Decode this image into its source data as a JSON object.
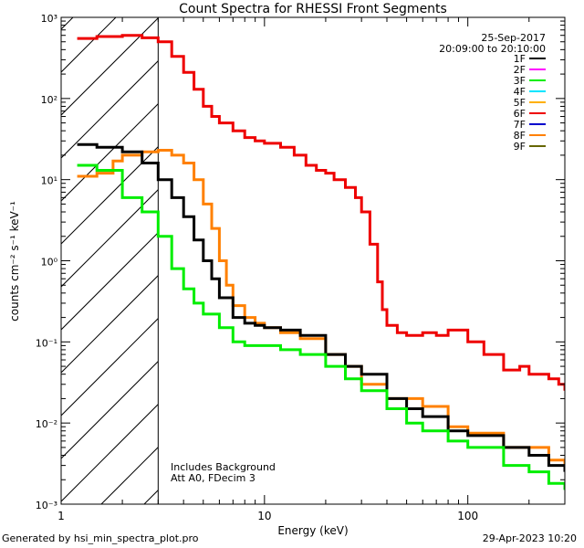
{
  "chart_data": {
    "type": "line",
    "title": "Count Spectra for RHESSI Front Segments",
    "xlabel": "Energy (keV)",
    "ylabel": "counts cm⁻² s⁻¹ keV⁻¹",
    "xscale": "log",
    "yscale": "log",
    "xlim": [
      1,
      300
    ],
    "ylim": [
      0.001,
      1000
    ],
    "x_ticks": [
      {
        "value": 1,
        "label": "1"
      },
      {
        "value": 10,
        "label": "10"
      },
      {
        "value": 100,
        "label": "100"
      }
    ],
    "y_ticks": [
      {
        "value": 0.001,
        "label": "10⁻³"
      },
      {
        "value": 0.01,
        "label": "10⁻²"
      },
      {
        "value": 0.1,
        "label": "10⁻¹"
      },
      {
        "value": 1,
        "label": "10⁰"
      },
      {
        "value": 10,
        "label": "10¹"
      },
      {
        "value": 100,
        "label": "10²"
      },
      {
        "value": 1000,
        "label": "10³"
      }
    ],
    "date": "25-Sep-2017",
    "time_range": "20:09:00 to 20:10:00",
    "hatched_region_xmax": 3,
    "annotation_lines": [
      "Includes Background",
      "Att A0, FDecim 3"
    ],
    "legend": [
      {
        "label": "1F",
        "color": "#000000"
      },
      {
        "label": "2F",
        "color": "#ff00ff"
      },
      {
        "label": "3F",
        "color": "#00ee00"
      },
      {
        "label": "4F",
        "color": "#00e5ff"
      },
      {
        "label": "5F",
        "color": "#ffb000"
      },
      {
        "label": "6F",
        "color": "#ee0000"
      },
      {
        "label": "7F",
        "color": "#0000cc"
      },
      {
        "label": "8F",
        "color": "#ff8000"
      },
      {
        "label": "9F",
        "color": "#666600"
      }
    ],
    "series": [
      {
        "name": "6F",
        "color": "#ee0000",
        "x": [
          1.2,
          1.5,
          2.0,
          2.5,
          3.0,
          3.5,
          4.0,
          4.5,
          5.0,
          5.5,
          6.0,
          7.0,
          8.0,
          9.0,
          10,
          12,
          14,
          16,
          18,
          20,
          22,
          25,
          28,
          30,
          33,
          36,
          38,
          40,
          45,
          50,
          60,
          70,
          80,
          100,
          120,
          150,
          180,
          200,
          250,
          280,
          300
        ],
        "y": [
          550,
          580,
          600,
          560,
          500,
          330,
          210,
          130,
          80,
          60,
          50,
          40,
          33,
          30,
          28,
          25,
          20,
          15,
          13,
          12,
          10,
          8,
          6,
          4,
          1.6,
          0.55,
          0.25,
          0.16,
          0.13,
          0.12,
          0.13,
          0.12,
          0.14,
          0.1,
          0.07,
          0.045,
          0.05,
          0.04,
          0.035,
          0.03,
          0.025
        ]
      },
      {
        "name": "8F",
        "color": "#ff8000",
        "x": [
          1.2,
          1.5,
          1.8,
          2.0,
          2.5,
          3.0,
          3.5,
          4.0,
          4.5,
          5.0,
          5.5,
          6.0,
          6.5,
          7.0,
          8.0,
          9.0,
          10,
          12,
          15,
          20,
          25,
          30,
          40,
          50,
          60,
          80,
          100,
          150,
          200,
          250,
          300
        ],
        "y": [
          11,
          12,
          17,
          20,
          22,
          23,
          20,
          16,
          10,
          5,
          2.5,
          1.0,
          0.5,
          0.28,
          0.2,
          0.17,
          0.15,
          0.13,
          0.11,
          0.07,
          0.05,
          0.03,
          0.02,
          0.02,
          0.016,
          0.009,
          0.0075,
          0.005,
          0.005,
          0.0035,
          0.003
        ]
      },
      {
        "name": "1F",
        "color": "#000000",
        "x": [
          1.2,
          1.5,
          2.0,
          2.5,
          3.0,
          3.5,
          4.0,
          4.5,
          5.0,
          5.5,
          6.0,
          7.0,
          8.0,
          9.0,
          10,
          12,
          15,
          20,
          25,
          30,
          40,
          50,
          60,
          80,
          100,
          150,
          200,
          250,
          300
        ],
        "y": [
          27,
          25,
          22,
          16,
          10,
          6,
          3.5,
          1.8,
          1.0,
          0.6,
          0.35,
          0.2,
          0.17,
          0.16,
          0.15,
          0.14,
          0.12,
          0.07,
          0.05,
          0.04,
          0.02,
          0.015,
          0.012,
          0.008,
          0.007,
          0.005,
          0.004,
          0.003,
          0.0025
        ]
      },
      {
        "name": "3F",
        "color": "#00ee00",
        "x": [
          1.2,
          1.5,
          2.0,
          2.5,
          3.0,
          3.5,
          4.0,
          4.5,
          5.0,
          6.0,
          7.0,
          8.0,
          10,
          12,
          15,
          20,
          25,
          30,
          40,
          50,
          60,
          80,
          100,
          150,
          200,
          250,
          300
        ],
        "y": [
          15,
          13,
          6,
          4,
          2,
          0.8,
          0.45,
          0.3,
          0.22,
          0.15,
          0.1,
          0.09,
          0.09,
          0.08,
          0.07,
          0.05,
          0.035,
          0.025,
          0.015,
          0.01,
          0.008,
          0.006,
          0.005,
          0.003,
          0.0025,
          0.0018,
          0.0015
        ]
      }
    ]
  },
  "footer": {
    "generated_by": "Generated by hsi_min_spectra_plot.pro",
    "timestamp": "29-Apr-2023 10:20"
  }
}
